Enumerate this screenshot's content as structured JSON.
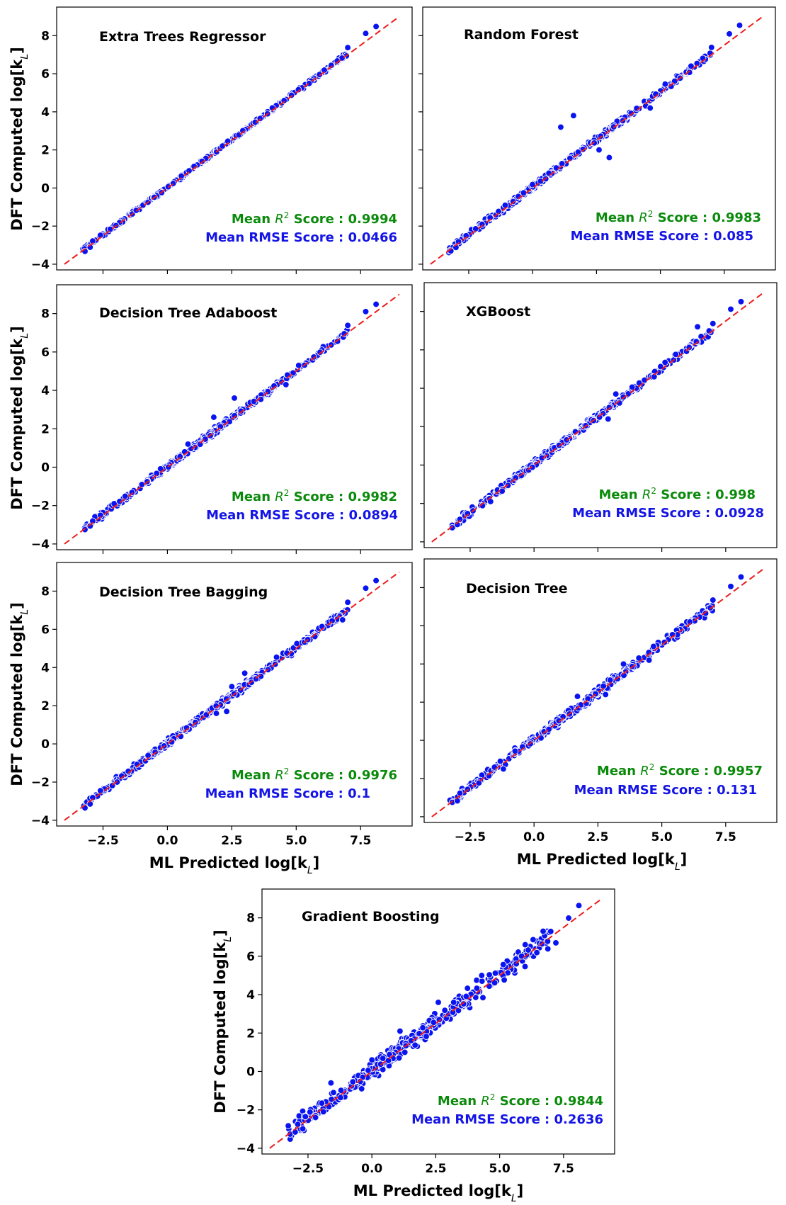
{
  "figure": {
    "ylabel": "DFT Computed log[k",
    "ylabel_sub": "L",
    "ylabel_end": "]",
    "xlabel": "ML Predicted log[k",
    "xlabel_sub": "L",
    "xlabel_end": "]",
    "r2_prefix": "Mean ",
    "r2_symbol": "R",
    "r2_sup": "2",
    "r2_suffix": " Score : ",
    "rmse_prefix": "Mean RMSE Score : ",
    "colors": {
      "points": "#0a14f0",
      "point_edge": "#ffffff",
      "fit_line": "#ee1c1c",
      "r2_text": "#0a8a0a",
      "rmse_text": "#1414e6",
      "axis": "#000000"
    }
  },
  "chart_data": [
    {
      "type": "scatter",
      "title": "Extra Trees Regressor",
      "r2": "0.9994",
      "rmse": "0.0466",
      "noise": 0.06,
      "outliers": [],
      "xlim": [
        -4.3,
        9.5
      ],
      "ylim": [
        -4.3,
        9.5
      ],
      "xticks": [
        "-2.5",
        "0.0",
        "2.5",
        "5.0",
        "7.5"
      ],
      "yticks": [
        "-4",
        "-2",
        "0",
        "2",
        "4",
        "6",
        "8"
      ],
      "show_xticklabels": false,
      "show_yticklabels": true,
      "reference_line": [
        [
          -4,
          -4
        ],
        [
          9,
          9
        ]
      ]
    },
    {
      "type": "scatter",
      "title": "Random Forest",
      "r2": "0.9983",
      "rmse": "0.085",
      "noise": 0.1,
      "outliers": [
        [
          1.6,
          3.8
        ],
        [
          1.1,
          3.2
        ],
        [
          2.6,
          2.0
        ],
        [
          4.6,
          4.2
        ],
        [
          6.2,
          6.4
        ],
        [
          3.0,
          1.6
        ]
      ],
      "xlim": [
        -4.3,
        9.5
      ],
      "ylim": [
        -4.3,
        9.5
      ],
      "xticks": [
        "-2.5",
        "0.0",
        "2.5",
        "5.0",
        "7.5"
      ],
      "yticks": [
        "-4",
        "-2",
        "0",
        "2",
        "4",
        "6",
        "8"
      ],
      "show_xticklabels": false,
      "show_yticklabels": false,
      "reference_line": [
        [
          -4,
          -4
        ],
        [
          9,
          9
        ]
      ]
    },
    {
      "type": "scatter",
      "title": "Decision Tree Adaboost",
      "r2": "0.9982",
      "rmse": "0.0894",
      "noise": 0.1,
      "outliers": [
        [
          2.6,
          3.6
        ],
        [
          1.8,
          2.6
        ],
        [
          4.6,
          4.3
        ],
        [
          0.8,
          1.2
        ]
      ],
      "xlim": [
        -4.3,
        9.5
      ],
      "ylim": [
        -4.3,
        9.5
      ],
      "xticks": [
        "-2.5",
        "0.0",
        "2.5",
        "5.0",
        "7.5"
      ],
      "yticks": [
        "-4",
        "-2",
        "0",
        "2",
        "4",
        "6",
        "8"
      ],
      "show_xticklabels": false,
      "show_yticklabels": true,
      "reference_line": [
        [
          -4,
          -4
        ],
        [
          9,
          9
        ]
      ]
    },
    {
      "type": "scatter",
      "title": "XGBoost",
      "r2": "0.998",
      "rmse": "0.0928",
      "noise": 0.11,
      "outliers": [
        [
          -1.7,
          -1.9
        ],
        [
          4.7,
          4.6
        ],
        [
          6.4,
          7.2
        ],
        [
          3.2,
          3.7
        ],
        [
          2.9,
          2.4
        ]
      ],
      "xlim": [
        -4.3,
        9.5
      ],
      "ylim": [
        -4.3,
        9.5
      ],
      "xticks": [
        "-2.5",
        "0.0",
        "2.5",
        "5.0",
        "7.5"
      ],
      "yticks": [
        "-4",
        "-2",
        "0",
        "2",
        "4",
        "6",
        "8"
      ],
      "show_xticklabels": false,
      "show_yticklabels": false,
      "reference_line": [
        [
          -4,
          -4
        ],
        [
          9,
          9
        ]
      ]
    },
    {
      "type": "scatter",
      "title": "Decision Tree Bagging",
      "r2": "0.9976",
      "rmse": "0.1",
      "noise": 0.12,
      "outliers": [
        [
          1.9,
          1.6
        ],
        [
          2.3,
          1.7
        ],
        [
          2.5,
          3.0
        ],
        [
          3.0,
          3.7
        ],
        [
          6.8,
          6.5
        ]
      ],
      "xlim": [
        -4.3,
        9.5
      ],
      "ylim": [
        -4.3,
        9.5
      ],
      "xticks": [
        "-2.5",
        "0.0",
        "2.5",
        "5.0",
        "7.5"
      ],
      "yticks": [
        "-4",
        "-2",
        "0",
        "2",
        "4",
        "6",
        "8"
      ],
      "show_xticklabels": true,
      "show_yticklabels": true,
      "reference_line": [
        [
          -4,
          -4
        ],
        [
          9,
          9
        ]
      ]
    },
    {
      "type": "scatter",
      "title": "Decision Tree",
      "r2": "0.9957",
      "rmse": "0.131",
      "noise": 0.15,
      "outliers": [
        [
          1.7,
          2.3
        ],
        [
          2.8,
          2.4
        ],
        [
          4.5,
          4.2
        ],
        [
          6.1,
          6.2
        ],
        [
          3.5,
          4.0
        ],
        [
          -1.2,
          -1.5
        ]
      ],
      "xlim": [
        -4.3,
        9.5
      ],
      "ylim": [
        -4.3,
        9.5
      ],
      "xticks": [
        "-2.5",
        "0.0",
        "2.5",
        "5.0",
        "7.5"
      ],
      "yticks": [
        "-4",
        "-2",
        "0",
        "2",
        "4",
        "6",
        "8"
      ],
      "show_xticklabels": true,
      "show_yticklabels": false,
      "reference_line": [
        [
          -4,
          -4
        ],
        [
          9,
          9
        ]
      ]
    },
    {
      "type": "scatter",
      "title": "Gradient Boosting",
      "r2": "0.9844",
      "rmse": "0.2636",
      "noise": 0.3,
      "outliers": [
        [
          -1.6,
          -0.6
        ],
        [
          -1.5,
          -1.1
        ],
        [
          0.0,
          0.6
        ],
        [
          1.1,
          2.1
        ],
        [
          2.6,
          3.6
        ],
        [
          7.2,
          6.7
        ],
        [
          6.7,
          7.3
        ],
        [
          -0.4,
          -0.9
        ],
        [
          3.2,
          3.6
        ],
        [
          4.3,
          5.0
        ]
      ],
      "xlim": [
        -4.3,
        9.5
      ],
      "ylim": [
        -4.3,
        9.5
      ],
      "xticks": [
        "-2.5",
        "0.0",
        "2.5",
        "5.0",
        "7.5"
      ],
      "yticks": [
        "-4",
        "-2",
        "0",
        "2",
        "4",
        "6",
        "8"
      ],
      "show_xticklabels": true,
      "show_yticklabels": true,
      "reference_line": [
        [
          -4,
          -4
        ],
        [
          9,
          9
        ]
      ]
    }
  ]
}
